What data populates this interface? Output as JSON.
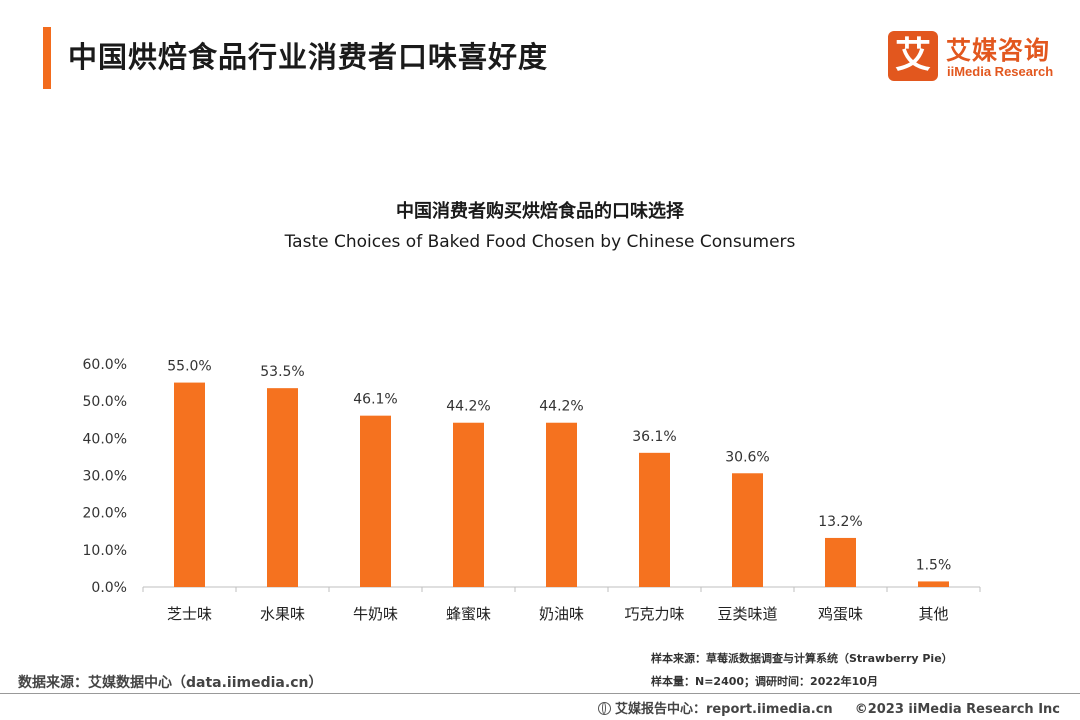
{
  "header": {
    "title": "中国烘焙食品行业消费者口味喜好度"
  },
  "logo": {
    "badge": "艾",
    "name_cn": "艾媒咨询",
    "name_en": "iiMedia Research"
  },
  "colors": {
    "accent": "#f26b1d",
    "bar": "#f5721f",
    "logo": "#e2571e"
  },
  "chart_data": {
    "type": "bar",
    "title": "中国消费者购买烘焙食品的口味选择",
    "subtitle": "Taste Choices of Baked Food  Chosen by Chinese Consumers",
    "categories": [
      "芝士味",
      "水果味",
      "牛奶味",
      "蜂蜜味",
      "奶油味",
      "巧克力味",
      "豆类味道",
      "鸡蛋味",
      "其他"
    ],
    "values": [
      55.0,
      53.5,
      46.1,
      44.2,
      44.2,
      36.1,
      30.6,
      13.2,
      1.5
    ],
    "value_labels": [
      "55.0%",
      "53.5%",
      "46.1%",
      "44.2%",
      "44.2%",
      "36.1%",
      "30.6%",
      "13.2%",
      "1.5%"
    ],
    "y_ticks": [
      0,
      10,
      20,
      30,
      40,
      50,
      60
    ],
    "y_tick_labels": [
      "0.0%",
      "10.0%",
      "20.0%",
      "30.0%",
      "40.0%",
      "50.0%",
      "60.0%"
    ],
    "ylim": [
      0,
      60
    ],
    "xlabel": "",
    "ylabel": "",
    "grid": false
  },
  "footer": {
    "data_source": "数据来源：艾媒数据中心（data.iimedia.cn）",
    "sample_source": "样本来源：草莓派数据调查与计算系统（Strawberry Pie）",
    "sample_size": "样本量：N=2400；调研时间：2022年10月",
    "report_center": "艾媒报告中心：report.iimedia.cn",
    "copyright": "©2023 iiMedia Research  Inc"
  }
}
